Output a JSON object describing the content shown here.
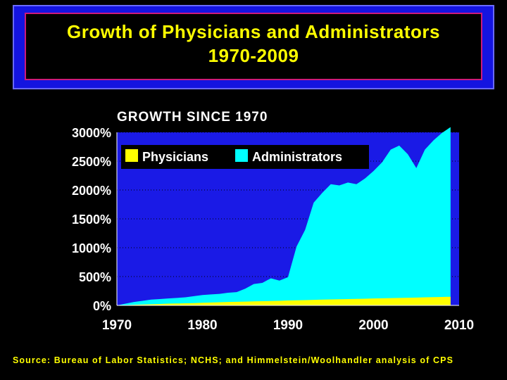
{
  "title": {
    "line1": "Growth of Physicians and Administrators",
    "line2": "1970-2009"
  },
  "source": "Source: Bureau of Labor Statistics; NCHS; and Himmelstein/Woolhandler analysis of CPS",
  "colors": {
    "background": "#000000",
    "plot_background": "#1a1ae6",
    "physicians": "#ffff00",
    "administrators": "#00ffff",
    "text": "#ffffff",
    "title_text": "#ffff00",
    "title_frame": "#1414e0",
    "title_border": "#cc1a7a"
  },
  "chart_data": {
    "type": "area",
    "title": "GROWTH SINCE 1970",
    "xlabel": "",
    "ylabel": "",
    "xlim": [
      1970,
      2010
    ],
    "ylim": [
      0,
      3000
    ],
    "x_ticks": [
      1970,
      1980,
      1990,
      2000,
      2010
    ],
    "x_tick_labels": [
      "1970",
      "1980",
      "1990",
      "2000",
      "2010"
    ],
    "y_ticks": [
      0,
      500,
      1000,
      1500,
      2000,
      2500,
      3000
    ],
    "y_tick_labels": [
      "0%",
      "500%",
      "1000%",
      "1500%",
      "2000%",
      "2500%",
      "3000%"
    ],
    "grid": "horizontal dotted",
    "legend_position": "top-left",
    "series": [
      {
        "name": "Administrators",
        "color": "#00ffff",
        "x": [
          1970,
          1971,
          1972,
          1973,
          1974,
          1975,
          1976,
          1977,
          1978,
          1979,
          1980,
          1981,
          1982,
          1983,
          1984,
          1985,
          1986,
          1987,
          1988,
          1989,
          1990,
          1991,
          1992,
          1993,
          1994,
          1995,
          1996,
          1997,
          1998,
          1999,
          2000,
          2001,
          2002,
          2003,
          2004,
          2005,
          2006,
          2007,
          2008,
          2009
        ],
        "values": [
          0,
          30,
          60,
          80,
          100,
          110,
          120,
          130,
          140,
          160,
          180,
          190,
          200,
          220,
          230,
          290,
          370,
          390,
          470,
          430,
          490,
          1020,
          1310,
          1780,
          1950,
          2100,
          2080,
          2130,
          2100,
          2200,
          2330,
          2480,
          2700,
          2770,
          2620,
          2380,
          2700,
          2860,
          2990,
          3090
        ]
      },
      {
        "name": "Physicians",
        "color": "#ffff00",
        "x": [
          1970,
          1971,
          1972,
          1973,
          1974,
          1975,
          1976,
          1977,
          1978,
          1979,
          1980,
          1981,
          1982,
          1983,
          1984,
          1985,
          1986,
          1987,
          1988,
          1989,
          1990,
          1991,
          1992,
          1993,
          1994,
          1995,
          1996,
          1997,
          1998,
          1999,
          2000,
          2001,
          2002,
          2003,
          2004,
          2005,
          2006,
          2007,
          2008,
          2009
        ],
        "values": [
          0,
          5,
          10,
          15,
          20,
          25,
          30,
          33,
          36,
          40,
          45,
          50,
          55,
          60,
          63,
          66,
          70,
          73,
          76,
          80,
          85,
          88,
          92,
          96,
          100,
          103,
          106,
          110,
          113,
          116,
          120,
          123,
          126,
          130,
          133,
          136,
          140,
          143,
          146,
          150
        ]
      }
    ]
  }
}
